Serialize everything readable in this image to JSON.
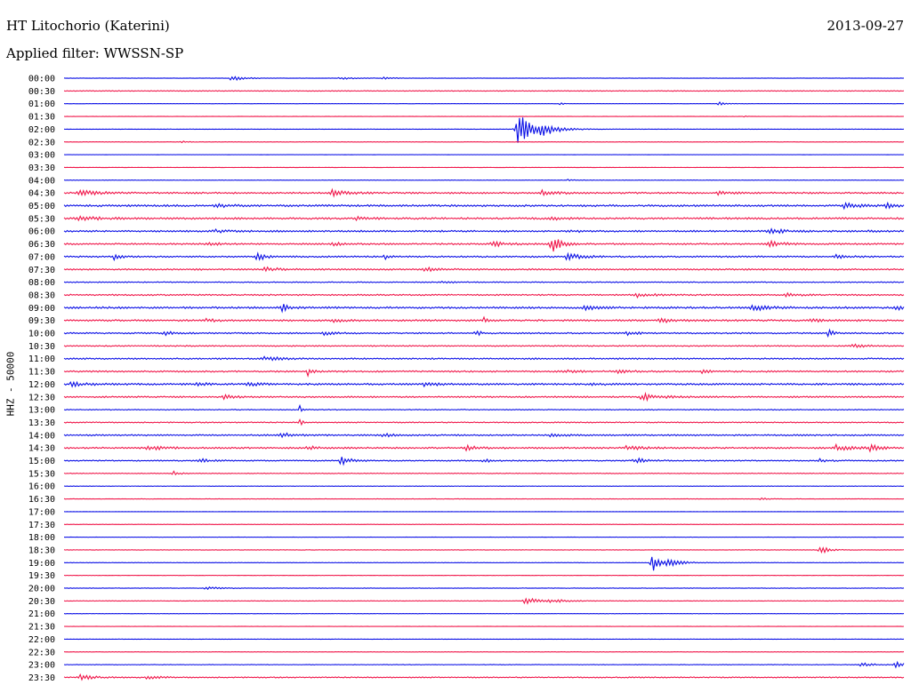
{
  "header": {
    "station": "HT Litochorio (Katerini)",
    "date": "2013-09-27",
    "filter_label": "Applied filter: WWSSN-SP"
  },
  "colors": {
    "even_trace": "#0b10e6",
    "odd_trace": "#f0174a"
  },
  "chart_data": {
    "type": "line",
    "title": "HT Litochorio (Katerini)",
    "subtitle": "Applied filter: WWSSN-SP",
    "ylabel": "HHZ - 50000",
    "xlabel": "",
    "grid": false,
    "legend": "none",
    "categories": [
      "00:00",
      "00:30",
      "01:00",
      "01:30",
      "02:00",
      "02:30",
      "03:00",
      "03:30",
      "04:00",
      "04:30",
      "05:00",
      "05:30",
      "06:00",
      "06:30",
      "07:00",
      "07:30",
      "08:00",
      "08:30",
      "09:00",
      "09:30",
      "10:00",
      "10:30",
      "11:00",
      "11:30",
      "12:00",
      "12:30",
      "13:00",
      "13:30",
      "14:00",
      "14:30",
      "15:00",
      "15:30",
      "16:00",
      "16:30",
      "17:00",
      "17:30",
      "18:00",
      "18:30",
      "19:00",
      "19:30",
      "20:00",
      "20:30",
      "21:00",
      "21:30",
      "22:00",
      "22:30",
      "23:00",
      "23:30"
    ],
    "x_range_minutes": [
      0,
      30
    ],
    "series": [
      {
        "noise": 0.07,
        "events": [
          [
            20,
            1.2,
            1.2
          ],
          [
            33,
            0.4,
            1.6
          ],
          [
            38,
            0.5,
            1.0
          ]
        ]
      },
      {
        "noise": 0.14,
        "events": []
      },
      {
        "noise": 0.05,
        "events": [
          [
            78,
            0.6,
            0.8
          ],
          [
            59,
            0.9,
            0.3
          ]
        ]
      },
      {
        "noise": 0.06,
        "events": [
          [
            81,
            0.3,
            0.3
          ]
        ]
      },
      {
        "noise": 0.06,
        "events": [
          [
            54,
            8.0,
            1.4
          ],
          [
            57,
            2.0,
            1.8
          ]
        ]
      },
      {
        "noise": 0.06,
        "events": [
          [
            14,
            0.6,
            0.6
          ]
        ]
      },
      {
        "noise": 0.05,
        "events": []
      },
      {
        "noise": 0.06,
        "events": []
      },
      {
        "noise": 0.08,
        "events": [
          [
            60,
            0.3,
            0.8
          ]
        ]
      },
      {
        "noise": 0.3,
        "events": [
          [
            2,
            1.0,
            2.0
          ],
          [
            32,
            1.1,
            1.5
          ],
          [
            57,
            0.9,
            1.5
          ],
          [
            78,
            0.6,
            1.5
          ]
        ]
      },
      {
        "noise": 0.35,
        "events": [
          [
            18,
            0.6,
            1.5
          ],
          [
            93,
            1.0,
            1.5
          ],
          [
            98,
            0.8,
            1.0
          ]
        ]
      },
      {
        "noise": 0.33,
        "events": [
          [
            2,
            0.6,
            2.5
          ],
          [
            35,
            0.9,
            1.2
          ],
          [
            58,
            0.7,
            1.2
          ]
        ]
      },
      {
        "noise": 0.32,
        "events": [
          [
            18,
            0.5,
            1.5
          ],
          [
            60,
            0.5,
            1.2
          ],
          [
            84,
            1.0,
            1.5
          ],
          [
            96,
            0.5,
            1.0
          ]
        ]
      },
      {
        "noise": 0.3,
        "events": [
          [
            17,
            0.8,
            1.2
          ],
          [
            32,
            0.6,
            1.0
          ],
          [
            51,
            1.2,
            1.2
          ],
          [
            58,
            3.5,
            1.0
          ],
          [
            84,
            1.0,
            1.5
          ]
        ]
      },
      {
        "noise": 0.28,
        "events": [
          [
            6,
            1.6,
            0.6
          ],
          [
            23,
            1.8,
            0.8
          ],
          [
            38,
            1.6,
            0.4
          ],
          [
            60,
            1.4,
            1.5
          ],
          [
            92,
            0.8,
            1.0
          ]
        ]
      },
      {
        "noise": 0.28,
        "events": [
          [
            24,
            0.8,
            1.5
          ],
          [
            43,
            0.8,
            1.2
          ]
        ]
      },
      {
        "noise": 0.18,
        "events": [
          [
            45,
            0.5,
            1.0
          ]
        ]
      },
      {
        "noise": 0.26,
        "events": [
          [
            68,
            1.0,
            1.5
          ],
          [
            86,
            0.7,
            1.2
          ]
        ]
      },
      {
        "noise": 0.35,
        "events": [
          [
            26,
            1.3,
            0.8
          ],
          [
            62,
            0.8,
            1.5
          ],
          [
            82,
            1.2,
            1.5
          ],
          [
            99,
            1.5,
            0.6
          ]
        ]
      },
      {
        "noise": 0.33,
        "events": [
          [
            17,
            0.8,
            1.0
          ],
          [
            32,
            0.7,
            1.0
          ],
          [
            50,
            1.0,
            0.4
          ],
          [
            71,
            1.0,
            1.0
          ],
          [
            89,
            1.0,
            0.6
          ]
        ]
      },
      {
        "noise": 0.26,
        "events": [
          [
            12,
            0.7,
            1.2
          ],
          [
            31,
            0.9,
            1.0
          ],
          [
            49,
            1.1,
            0.6
          ],
          [
            67,
            0.8,
            1.0
          ],
          [
            91,
            2.0,
            0.5
          ]
        ]
      },
      {
        "noise": 0.22,
        "events": [
          [
            94,
            0.6,
            1.5
          ]
        ]
      },
      {
        "noise": 0.28,
        "events": [
          [
            24,
            0.6,
            2.0
          ]
        ]
      },
      {
        "noise": 0.28,
        "events": [
          [
            29,
            1.6,
            0.7
          ],
          [
            59,
            0.6,
            1.5
          ],
          [
            66,
            0.6,
            1.2
          ],
          [
            76,
            0.6,
            1.0
          ]
        ]
      },
      {
        "noise": 0.33,
        "events": [
          [
            1,
            0.8,
            1.5
          ],
          [
            16,
            0.6,
            1.2
          ],
          [
            22,
            0.7,
            1.2
          ],
          [
            43,
            0.8,
            1.2
          ],
          [
            63,
            0.6,
            1.0
          ]
        ]
      },
      {
        "noise": 0.28,
        "events": [
          [
            19,
            0.7,
            1.2
          ],
          [
            69,
            1.2,
            2.0
          ]
        ]
      },
      {
        "noise": 0.16,
        "events": [
          [
            28,
            3.0,
            0.2
          ]
        ]
      },
      {
        "noise": 0.2,
        "events": [
          [
            28,
            2.0,
            0.3
          ]
        ]
      },
      {
        "noise": 0.28,
        "events": [
          [
            26,
            0.9,
            1.2
          ],
          [
            38,
            0.6,
            1.0
          ],
          [
            58,
            0.7,
            1.0
          ]
        ]
      },
      {
        "noise": 0.3,
        "events": [
          [
            10,
            0.9,
            1.5
          ],
          [
            29,
            0.8,
            1.0
          ],
          [
            48,
            0.9,
            1.5
          ],
          [
            67,
            0.8,
            1.5
          ],
          [
            92,
            1.1,
            1.5
          ],
          [
            96,
            1.2,
            1.0
          ]
        ]
      },
      {
        "noise": 0.22,
        "events": [
          [
            16,
            0.8,
            1.2
          ],
          [
            33,
            1.8,
            1.0
          ],
          [
            50,
            0.6,
            1.0
          ],
          [
            68,
            1.0,
            1.2
          ],
          [
            90,
            0.6,
            1.0
          ]
        ]
      },
      {
        "noise": 0.14,
        "events": [
          [
            13,
            0.9,
            0.6
          ]
        ]
      },
      {
        "noise": 0.08,
        "events": []
      },
      {
        "noise": 0.08,
        "events": [
          [
            83,
            0.6,
            0.6
          ]
        ]
      },
      {
        "noise": 0.05,
        "events": []
      },
      {
        "noise": 0.06,
        "events": []
      },
      {
        "noise": 0.06,
        "events": []
      },
      {
        "noise": 0.1,
        "events": [
          [
            90,
            2.0,
            0.8
          ]
        ]
      },
      {
        "noise": 0.08,
        "events": [
          [
            70,
            5.0,
            0.7
          ],
          [
            72,
            1.5,
            1.5
          ]
        ]
      },
      {
        "noise": 0.06,
        "events": []
      },
      {
        "noise": 0.1,
        "events": [
          [
            17,
            0.5,
            1.5
          ]
        ]
      },
      {
        "noise": 0.1,
        "events": [
          [
            55,
            1.8,
            1.4
          ],
          [
            58,
            0.6,
            1.8
          ]
        ]
      },
      {
        "noise": 0.06,
        "events": []
      },
      {
        "noise": 0.05,
        "events": []
      },
      {
        "noise": 0.06,
        "events": []
      },
      {
        "noise": 0.06,
        "events": []
      },
      {
        "noise": 0.1,
        "events": [
          [
            95,
            0.7,
            1.5
          ],
          [
            99,
            1.1,
            1.0
          ]
        ]
      },
      {
        "noise": 0.2,
        "events": [
          [
            2,
            1.0,
            1.5
          ],
          [
            10,
            0.6,
            1.5
          ]
        ]
      }
    ]
  }
}
